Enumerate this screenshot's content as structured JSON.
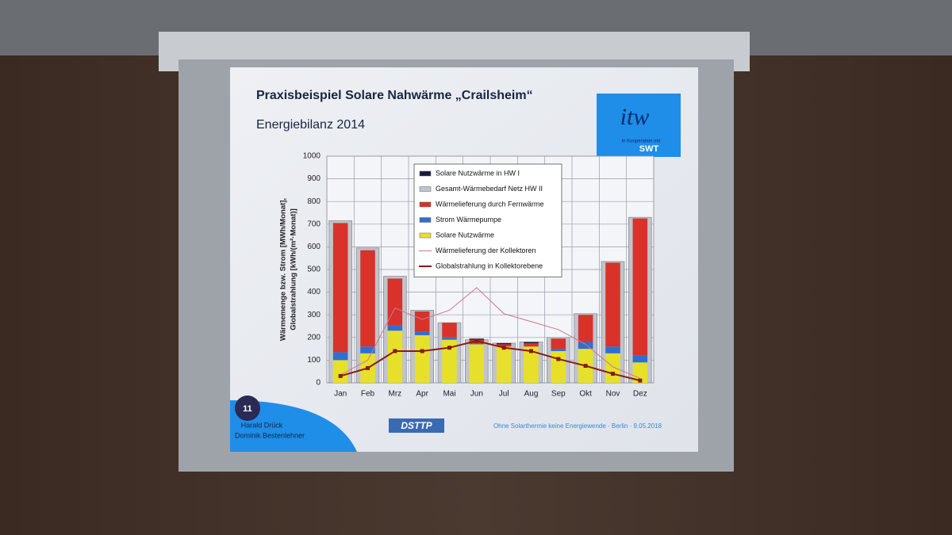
{
  "chart_data": {
    "type": "bar",
    "title": "Praxisbeispiel  Solare Nahwärme „Crailsheim“",
    "subtitle": "Energiebilanz 2014",
    "y_label": [
      "Wärmemenge bzw. Strom [MWh/Monat],",
      "Globalstrahlung [kWh/(m²·Monat)]"
    ],
    "categories": [
      "Jan",
      "Feb",
      "Mrz",
      "Apr",
      "Mai",
      "Jun",
      "Jul",
      "Aug",
      "Sep",
      "Okt",
      "Nov",
      "Dez"
    ],
    "series": [
      {
        "name": "Solare Nutzwärme in HW I",
        "color": "#1a1a40",
        "type": "bar",
        "stacked": true,
        "values": [
          0,
          0,
          0,
          0,
          0,
          5,
          5,
          5,
          0,
          0,
          0,
          0
        ]
      },
      {
        "name": "Gesamt-Wärmebedarf Netz HW II",
        "color": "#c0c4cc",
        "type": "bar",
        "stacked": false,
        "values": [
          715,
          595,
          470,
          320,
          265,
          190,
          175,
          180,
          200,
          305,
          535,
          730
        ]
      },
      {
        "name": "Wärmelieferung durch Fernwärme",
        "color": "#d8322a",
        "type": "bar",
        "stacked": true,
        "values": [
          570,
          425,
          205,
          90,
          65,
          15,
          10,
          15,
          45,
          120,
          370,
          605
        ]
      },
      {
        "name": "Strom Wärmepumpe",
        "color": "#2f6fd0",
        "type": "bar",
        "stacked": true,
        "values": [
          35,
          30,
          25,
          15,
          10,
          5,
          0,
          0,
          10,
          30,
          30,
          30
        ]
      },
      {
        "name": "Solare Nutzwärme",
        "color": "#e6e02a",
        "type": "bar",
        "stacked": true,
        "values": [
          100,
          130,
          230,
          210,
          190,
          170,
          160,
          160,
          140,
          150,
          130,
          90
        ]
      },
      {
        "name": "Wärmelieferung der Kollektoren",
        "color": "#c87890",
        "type": "line",
        "values": [
          35,
          100,
          330,
          280,
          320,
          420,
          305,
          270,
          235,
          170,
          70,
          20
        ]
      },
      {
        "name": "Globalstrahlung in Kollektorebene",
        "color": "#8a1a10",
        "type": "line",
        "values": [
          30,
          65,
          140,
          140,
          155,
          185,
          155,
          140,
          105,
          75,
          40,
          10
        ]
      }
    ],
    "ylim": [
      0,
      1000
    ],
    "yticks": [
      0,
      100,
      200,
      300,
      400,
      500,
      600,
      700,
      800,
      900,
      1000
    ],
    "grid": true
  },
  "slide": {
    "logo": "itw",
    "logo_note": "in Kooperation mit",
    "partner": "SWT",
    "number": "11",
    "authors": [
      "Harald Drück",
      "Dominik Bestenlehner"
    ],
    "brand": "DSTTP",
    "footer": "Ohne Solarthermie keine Energiewende · Berlin · 9.05.2018"
  }
}
